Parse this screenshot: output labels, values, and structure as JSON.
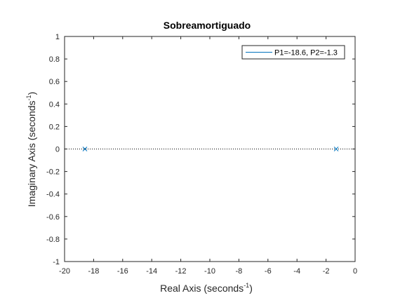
{
  "chart_data": {
    "type": "scatter",
    "title": "Sobreamortiguado",
    "xlabel": "Real Axis (seconds",
    "ylabel": "Imaginary Axis (seconds",
    "label_exponent": "-1",
    "label_close": ")",
    "xlim": [
      -20,
      0
    ],
    "ylim": [
      -1,
      1
    ],
    "xticks": [
      -20,
      -18,
      -16,
      -14,
      -12,
      -10,
      -8,
      -6,
      -4,
      -2,
      0
    ],
    "yticks": [
      -1,
      -0.8,
      -0.6,
      -0.4,
      -0.2,
      0,
      0.2,
      0.4,
      0.6,
      0.8,
      1
    ],
    "grid": false,
    "legend_position": "top-right",
    "series": [
      {
        "name": "P1=-18.6, P2=-1.3",
        "marker": "x",
        "color": "#0072BD",
        "points": [
          {
            "x": -18.6,
            "y": 0
          },
          {
            "x": -1.3,
            "y": 0
          }
        ]
      }
    ],
    "reference_line": {
      "y": 0,
      "style": "dotted",
      "color": "#000000"
    }
  }
}
